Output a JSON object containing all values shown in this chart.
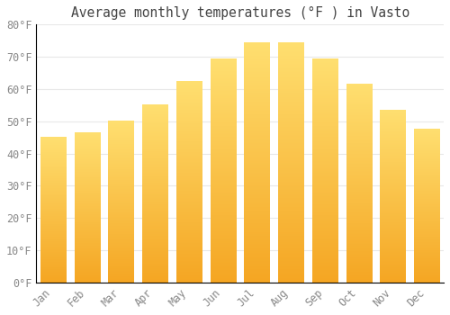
{
  "title": "Average monthly temperatures (°F ) in Vasto",
  "months": [
    "Jan",
    "Feb",
    "Mar",
    "Apr",
    "May",
    "Jun",
    "Jul",
    "Aug",
    "Sep",
    "Oct",
    "Nov",
    "Dec"
  ],
  "values": [
    45,
    46.5,
    50,
    55,
    62.5,
    69.5,
    74.5,
    74.5,
    69.5,
    61.5,
    53.5,
    47.5
  ],
  "bar_color_bottom": "#F5A623",
  "bar_color_top": "#FFD966",
  "bar_color_mid": "#FFC433",
  "ylim": [
    0,
    80
  ],
  "yticks": [
    0,
    10,
    20,
    30,
    40,
    50,
    60,
    70,
    80
  ],
  "ytick_labels": [
    "0°F",
    "10°F",
    "20°F",
    "30°F",
    "40°F",
    "50°F",
    "60°F",
    "70°F",
    "80°F"
  ],
  "background_color": "#FFFFFF",
  "grid_color": "#E8E8E8",
  "title_fontsize": 10.5,
  "tick_fontsize": 8.5,
  "tick_color": "#888888",
  "bar_width": 0.75
}
